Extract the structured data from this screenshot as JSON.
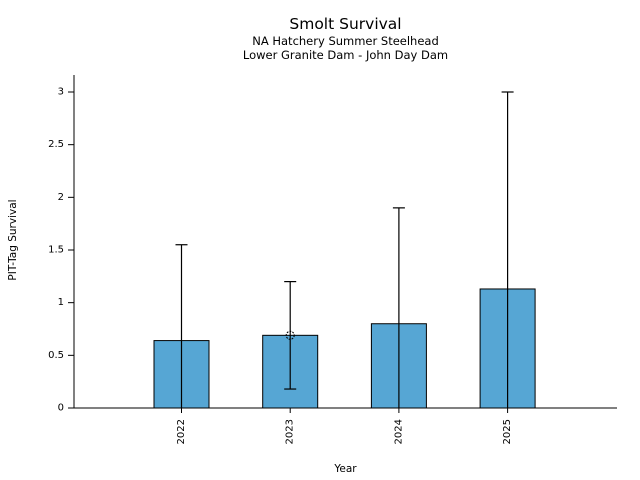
{
  "window": {
    "background_color": "#ffffff"
  },
  "chart_data": {
    "type": "bar",
    "title": "Smolt Survival",
    "subtitle_line1": "NA Hatchery Summer Steelhead",
    "subtitle_line2": "Lower Granite Dam - John Day Dam",
    "xlabel": "Year",
    "ylabel": "PIT-Tag Survival",
    "categories": [
      "2022",
      "2023",
      "2024",
      "2025"
    ],
    "values": [
      0.64,
      0.69,
      0.8,
      1.13
    ],
    "error_high": [
      1.55,
      1.2,
      1.9,
      3.0
    ],
    "error_low": [
      0,
      0.18,
      0,
      0
    ],
    "marker_points": [
      {
        "category": "2023",
        "value": 0.69
      }
    ],
    "ylim": [
      0,
      3
    ],
    "yticks": [
      0,
      0.5,
      1,
      1.5,
      2,
      2.5,
      3
    ],
    "ytick_labels": [
      "0",
      "0.5",
      "1",
      "1.5",
      "2",
      "2.5",
      "3"
    ],
    "grid": false,
    "legend_position": "none",
    "bar_color": "#56a6d4",
    "bar_edge_color": "#000000",
    "axis_color": "#000000"
  }
}
